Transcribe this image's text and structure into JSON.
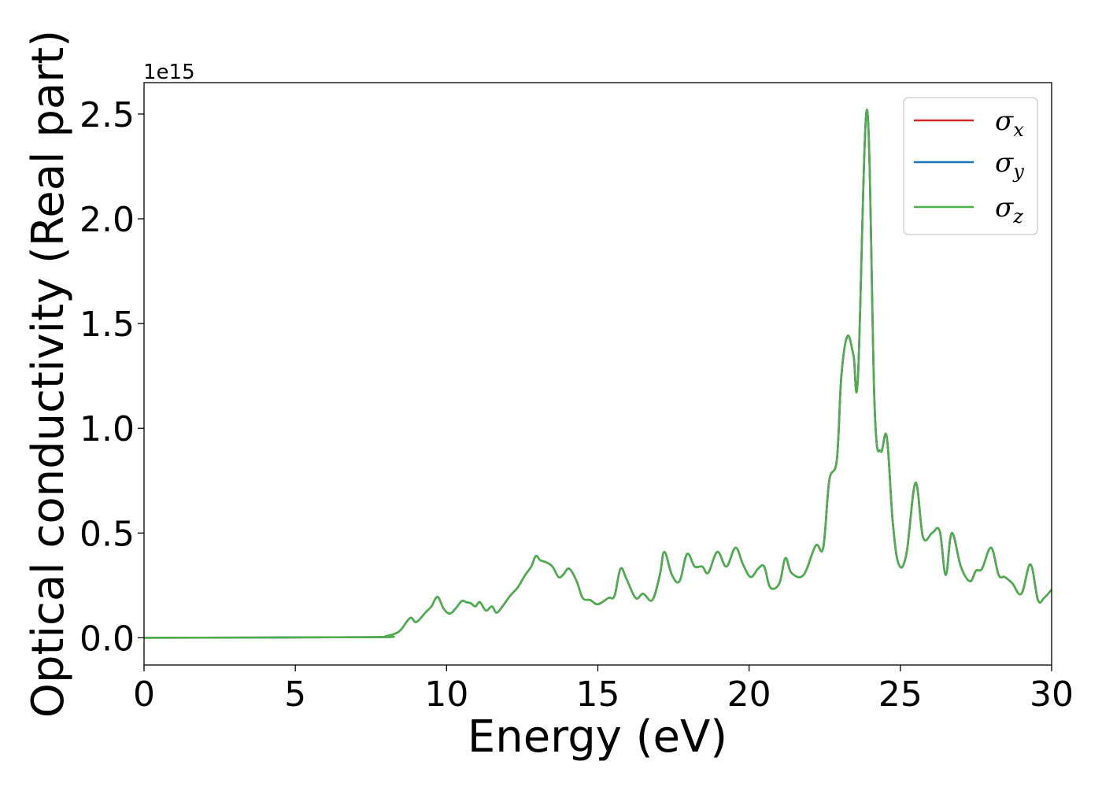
{
  "chart_data": {
    "type": "line",
    "xlabel": "Energy (eV)",
    "ylabel": "Optical conductivity (Real part)",
    "y_offset_label": "1e15",
    "xlim": [
      0,
      30
    ],
    "ylim": [
      -0.13,
      2.65
    ],
    "x_ticks": [
      0,
      5,
      10,
      15,
      20,
      25,
      30
    ],
    "x_tick_labels": [
      "0",
      "5",
      "10",
      "15",
      "20",
      "25",
      "30"
    ],
    "y_ticks": [
      0.0,
      0.5,
      1.0,
      1.5,
      2.0,
      2.5
    ],
    "y_tick_labels": [
      "0.0",
      "0.5",
      "1.0",
      "1.5",
      "2.0",
      "2.5"
    ],
    "grid": false,
    "legend_position": "top-right",
    "series": [
      {
        "name": "σ",
        "subscript": "x",
        "color": "#d62728"
      },
      {
        "name": "σ",
        "subscript": "y",
        "color": "#1f77b4"
      },
      {
        "name": "σ",
        "subscript": "z",
        "color": "#4daf4a"
      }
    ],
    "x": [
      0,
      7.5,
      8.0,
      8.3,
      8.5,
      8.8,
      9.0,
      9.3,
      9.5,
      9.7,
      9.9,
      10.1,
      10.3,
      10.5,
      10.65,
      10.8,
      10.95,
      11.1,
      11.3,
      11.5,
      11.65,
      11.85,
      12.1,
      12.35,
      12.6,
      12.8,
      12.95,
      13.1,
      13.3,
      13.5,
      13.7,
      13.85,
      14.05,
      14.3,
      14.5,
      14.75,
      15.0,
      15.35,
      15.55,
      15.75,
      15.95,
      16.25,
      16.5,
      16.8,
      17.05,
      17.2,
      17.45,
      17.7,
      17.95,
      18.2,
      18.45,
      18.65,
      18.95,
      19.25,
      19.55,
      19.8,
      20.05,
      20.3,
      20.5,
      20.7,
      21.0,
      21.2,
      21.4,
      21.8,
      22.2,
      22.45,
      22.65,
      22.9,
      23.05,
      23.25,
      23.45,
      23.6,
      23.9,
      24.15,
      24.35,
      24.55,
      24.75,
      24.95,
      25.2,
      25.5,
      25.75,
      26.05,
      26.3,
      26.5,
      26.7,
      27.0,
      27.3,
      27.5,
      27.7,
      28.0,
      28.25,
      28.45,
      28.7,
      29.0,
      29.3,
      29.55,
      29.75,
      30.0
    ],
    "y": [
      0.0,
      0.003,
      0.008,
      0.02,
      0.04,
      0.095,
      0.075,
      0.12,
      0.15,
      0.195,
      0.14,
      0.115,
      0.14,
      0.175,
      0.17,
      0.165,
      0.15,
      0.17,
      0.13,
      0.15,
      0.12,
      0.15,
      0.2,
      0.24,
      0.3,
      0.34,
      0.39,
      0.37,
      0.36,
      0.34,
      0.29,
      0.3,
      0.33,
      0.27,
      0.19,
      0.18,
      0.16,
      0.19,
      0.2,
      0.33,
      0.28,
      0.19,
      0.21,
      0.18,
      0.3,
      0.41,
      0.3,
      0.27,
      0.4,
      0.34,
      0.34,
      0.31,
      0.41,
      0.34,
      0.43,
      0.35,
      0.29,
      0.33,
      0.34,
      0.24,
      0.26,
      0.38,
      0.31,
      0.3,
      0.44,
      0.43,
      0.75,
      0.85,
      1.25,
      1.44,
      1.35,
      1.25,
      2.52,
      1.1,
      0.89,
      0.96,
      0.55,
      0.35,
      0.4,
      0.74,
      0.48,
      0.5,
      0.51,
      0.3,
      0.5,
      0.34,
      0.27,
      0.32,
      0.33,
      0.43,
      0.3,
      0.29,
      0.26,
      0.21,
      0.35,
      0.18,
      0.19,
      0.23
    ]
  }
}
